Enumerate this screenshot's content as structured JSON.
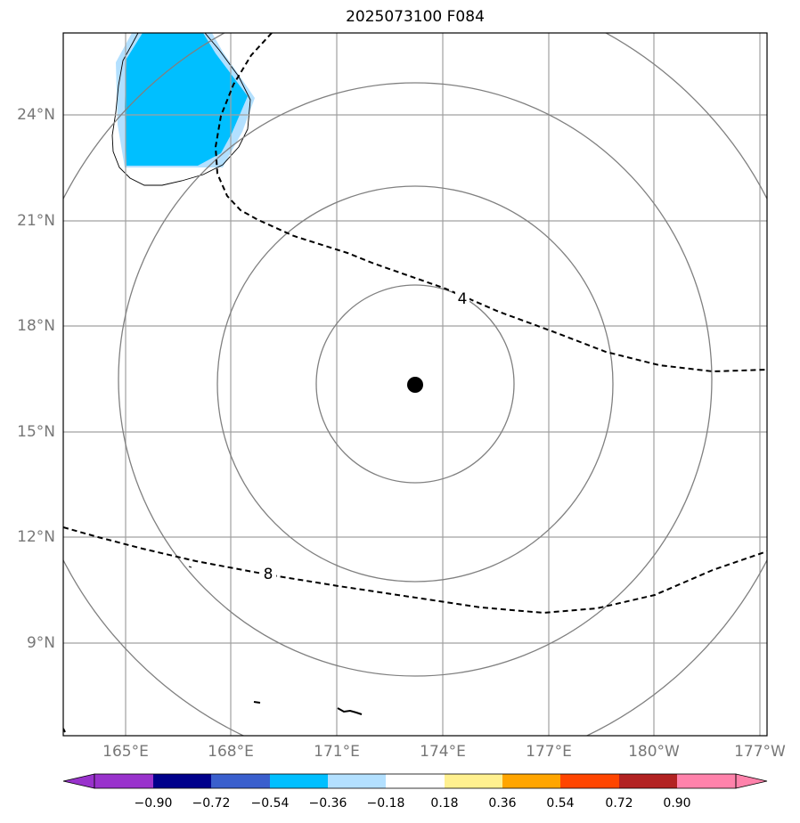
{
  "title": "2025073100 F084",
  "map": {
    "lat_ticks": [
      "24°N",
      "21°N",
      "18°N",
      "15°N",
      "12°N",
      "9°N"
    ],
    "lon_ticks": [
      "165°E",
      "168°E",
      "171°E",
      "174°E",
      "177°E",
      "180°W",
      "177°W"
    ],
    "contour_labels": [
      "4",
      "8"
    ],
    "center_marker": "storm-center",
    "colors": {
      "gridline": "#a0a0a0",
      "range_ring": "#808080",
      "shaded_light": "#b3e0ff",
      "shaded_dark": "#00bfff"
    }
  },
  "colorbar": {
    "colors": [
      "#9932cc",
      "#00008b",
      "#3a5fcd",
      "#00bfff",
      "#b3e0ff",
      "#ffffff",
      "#fff08f",
      "#ffa500",
      "#ff4500",
      "#b22222",
      "#ff82ab"
    ],
    "labels": [
      "−0.90",
      "−0.72",
      "−0.54",
      "−0.36",
      "−0.18",
      "0.18",
      "0.36",
      "0.54",
      "0.72",
      "0.90"
    ]
  }
}
